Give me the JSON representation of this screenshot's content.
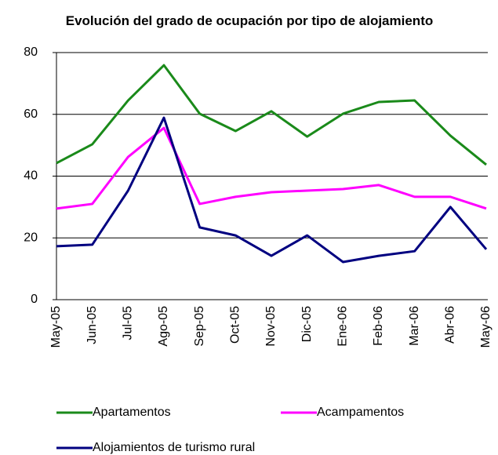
{
  "chart_data": {
    "type": "line",
    "title": "Evolución del grado de ocupación por tipo de alojamiento",
    "categories": [
      "May-05",
      "Jun-05",
      "Jul-05",
      "Ago-05",
      "Sep-05",
      "Oct-05",
      "Nov-05",
      "Dic-05",
      "Ene-06",
      "Feb-06",
      "Mar-06",
      "Abr-06",
      "May-06"
    ],
    "series": [
      {
        "name": "Apartamentos",
        "color": "#1a8a1a",
        "values": [
          44.2,
          50.3,
          64.5,
          75.9,
          60.2,
          54.6,
          61,
          52.8,
          60.2,
          64,
          64.5,
          53.1,
          43.7
        ]
      },
      {
        "name": "Acampamentos",
        "color": "#ff00ff",
        "values": [
          29.5,
          31,
          46.2,
          55.6,
          31,
          33.3,
          34.8,
          35.3,
          35.8,
          37.1,
          33.3,
          33.3,
          29.5
        ]
      },
      {
        "name": "Alojamientos de turismo rural",
        "color": "#000080",
        "values": [
          17.3,
          17.8,
          35.3,
          58.9,
          23.4,
          20.8,
          14.2,
          20.8,
          12.2,
          14.2,
          15.7,
          30,
          16.3
        ]
      }
    ],
    "ylim": [
      0,
      80
    ],
    "yticks": [
      0,
      20,
      40,
      60,
      80
    ],
    "grid": true
  }
}
